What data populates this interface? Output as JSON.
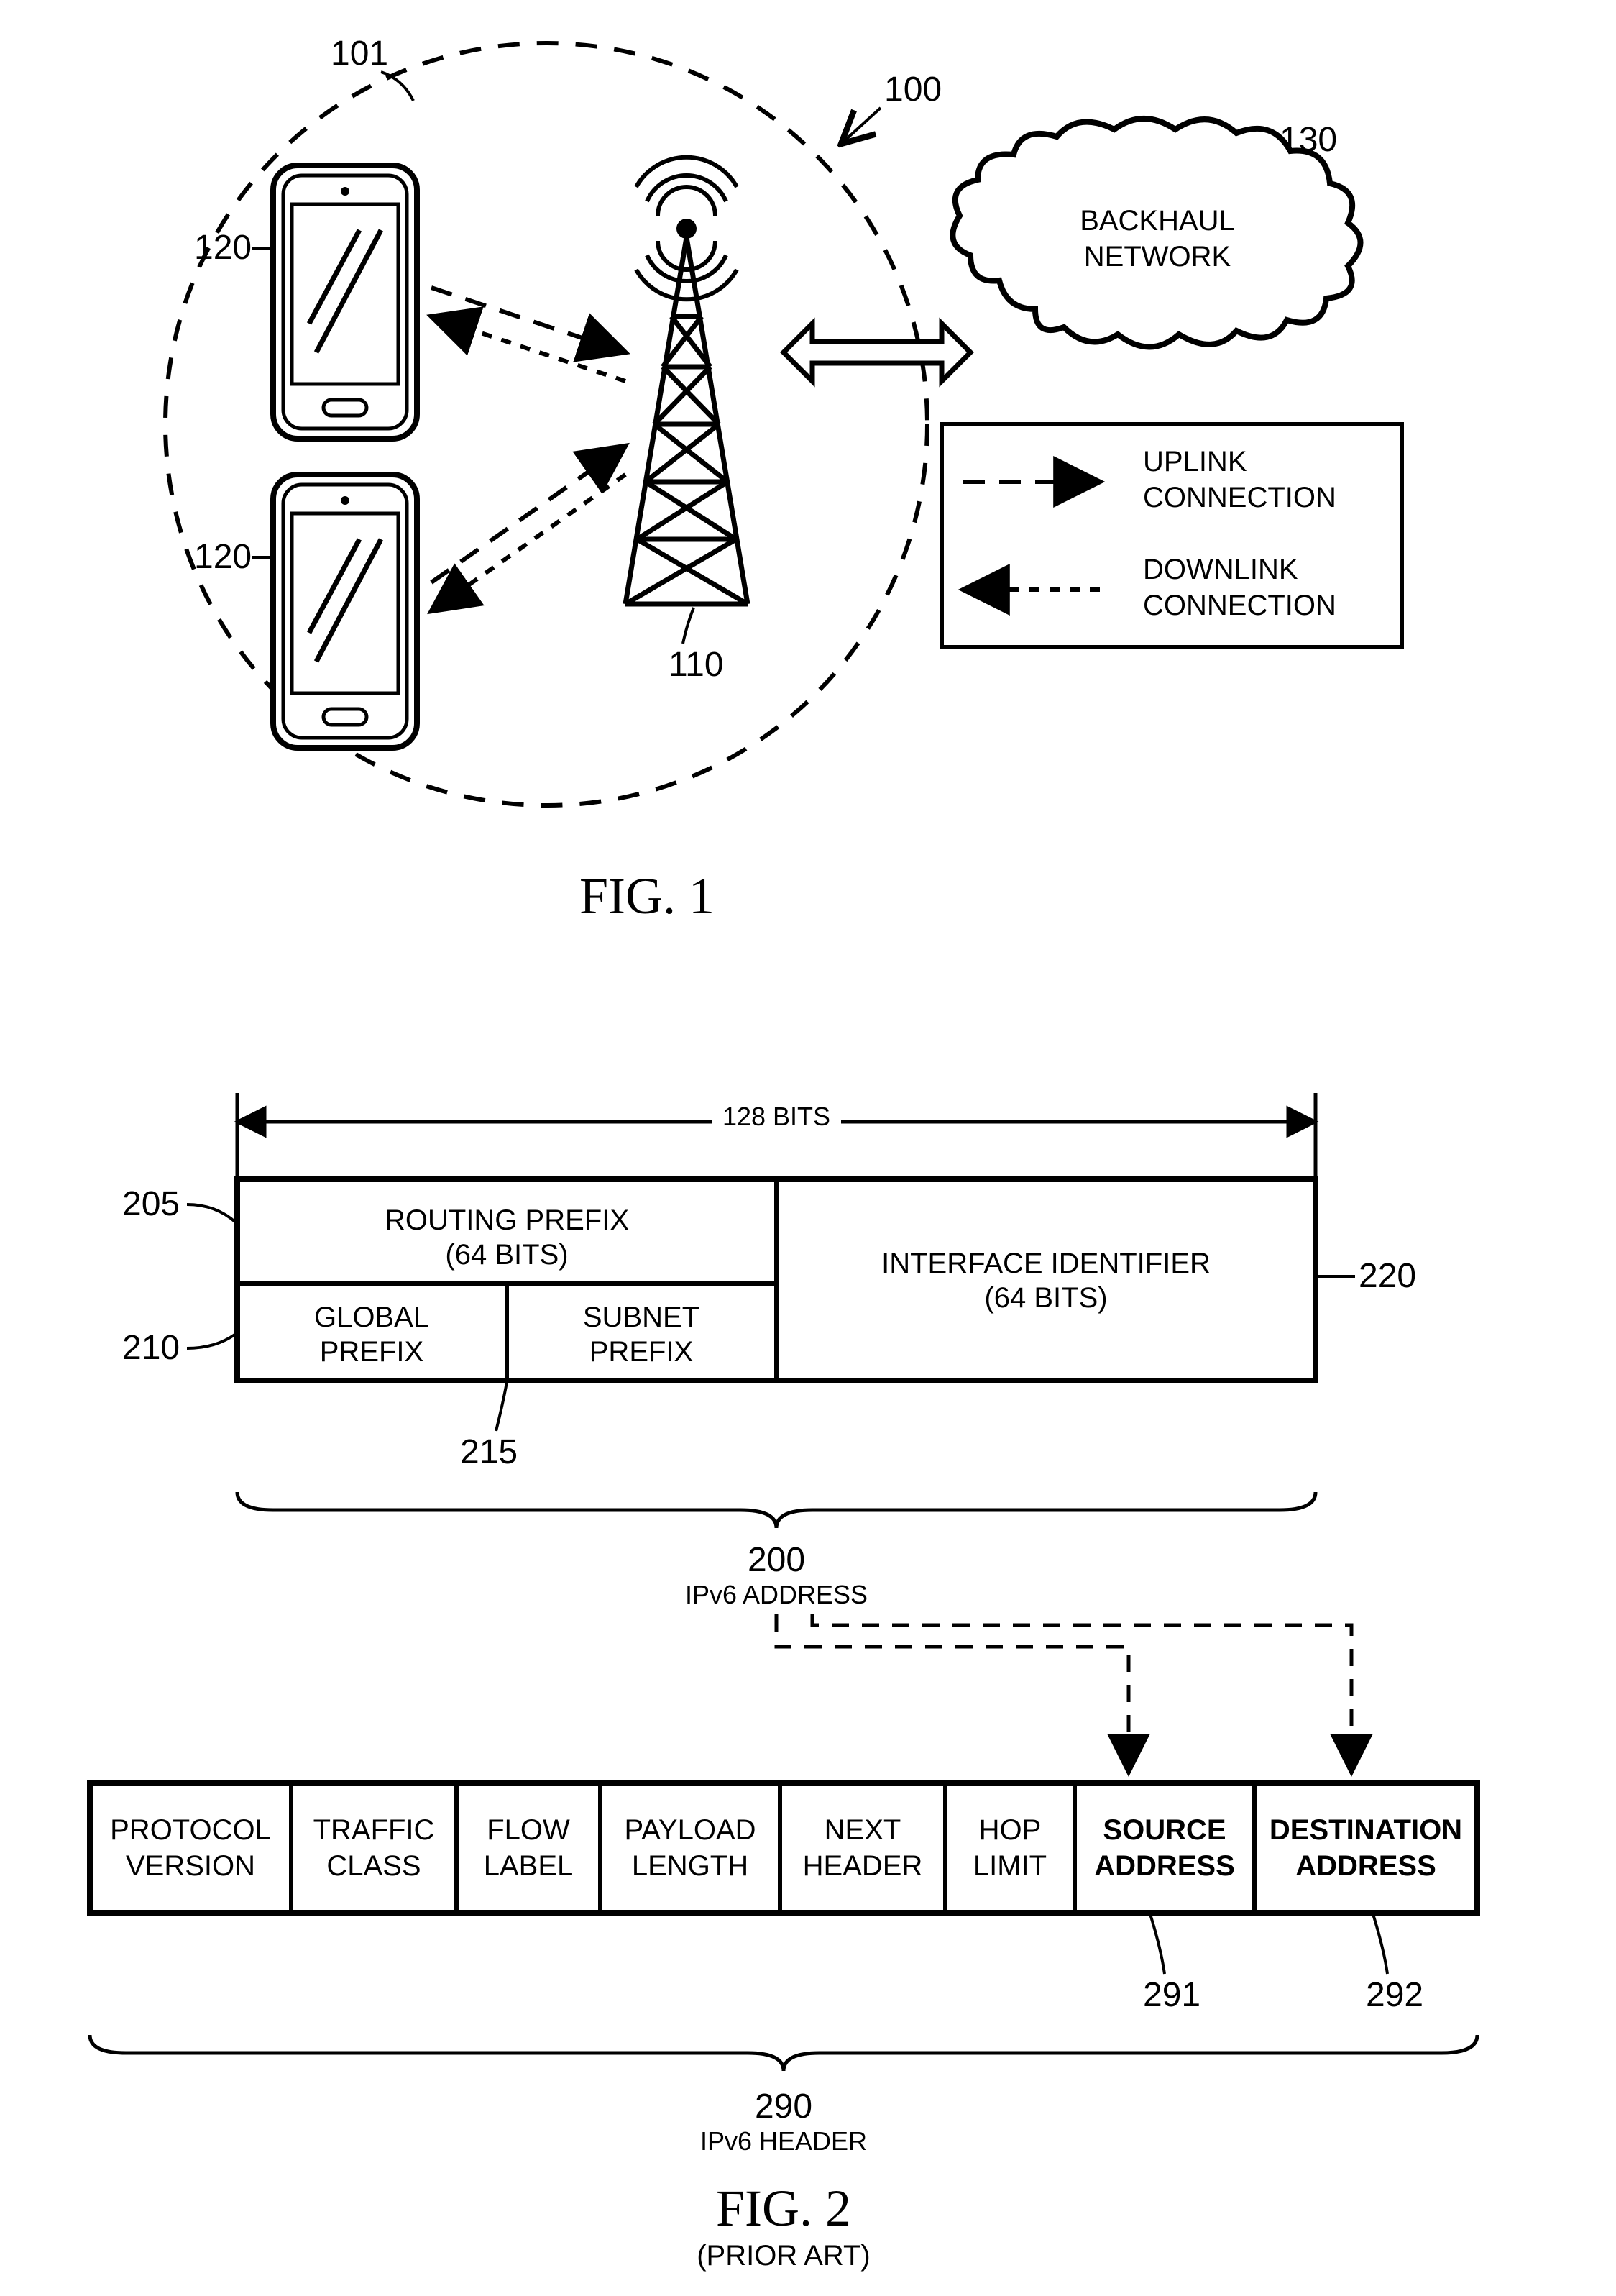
{
  "colors": {
    "stroke": "#000000",
    "bg": "#ffffff",
    "fill_white": "#ffffff"
  },
  "stroke_widths": {
    "thin": 4,
    "med": 6,
    "thick": 8
  },
  "fig1": {
    "title": "FIG. 1",
    "refs": {
      "r100": "100",
      "r101": "101",
      "r110": "110",
      "r120a": "120",
      "r120b": "120",
      "r130": "130"
    },
    "cloud_text_l1": "BACKHAUL",
    "cloud_text_l2": "NETWORK",
    "legend": {
      "uplink_l1": "UPLINK",
      "uplink_l2": "CONNECTION",
      "downlink_l1": "DOWNLINK",
      "downlink_l2": "CONNECTION"
    },
    "dash_long": "30 20",
    "dash_short": "14 14"
  },
  "fig2": {
    "title": "FIG. 2",
    "prior_art": "(PRIOR ART)",
    "bits_label": "128 BITS",
    "address_table": {
      "routing_prefix_l1": "ROUTING PREFIX",
      "routing_prefix_l2": "(64 BITS)",
      "interface_id_l1": "INTERFACE IDENTIFIER",
      "interface_id_l2": "(64 BITS)",
      "global_prefix_l1": "GLOBAL",
      "global_prefix_l2": "PREFIX",
      "subnet_prefix_l1": "SUBNET",
      "subnet_prefix_l2": "PREFIX"
    },
    "ipv6_addr_num": "200",
    "ipv6_addr_label": "IPv6 ADDRESS",
    "header_table": {
      "cells": [
        {
          "l1": "PROTOCOL",
          "l2": "VERSION",
          "bold": false
        },
        {
          "l1": "TRAFFIC",
          "l2": "CLASS",
          "bold": false
        },
        {
          "l1": "FLOW",
          "l2": "LABEL",
          "bold": false
        },
        {
          "l1": "PAYLOAD",
          "l2": "LENGTH",
          "bold": false
        },
        {
          "l1": "NEXT",
          "l2": "HEADER",
          "bold": false
        },
        {
          "l1": "HOP",
          "l2": "LIMIT",
          "bold": false
        },
        {
          "l1": "SOURCE",
          "l2": "ADDRESS",
          "bold": true
        },
        {
          "l1": "DESTINATION",
          "l2": "ADDRESS",
          "bold": true
        }
      ],
      "widths": [
        280,
        230,
        200,
        250,
        230,
        180,
        250,
        310
      ]
    },
    "ipv6_hdr_num": "290",
    "ipv6_hdr_label": "IPv6 HEADER",
    "refs": {
      "r205": "205",
      "r210": "210",
      "r215": "215",
      "r220": "220",
      "r291": "291",
      "r292": "292"
    },
    "dash": "24 18"
  }
}
